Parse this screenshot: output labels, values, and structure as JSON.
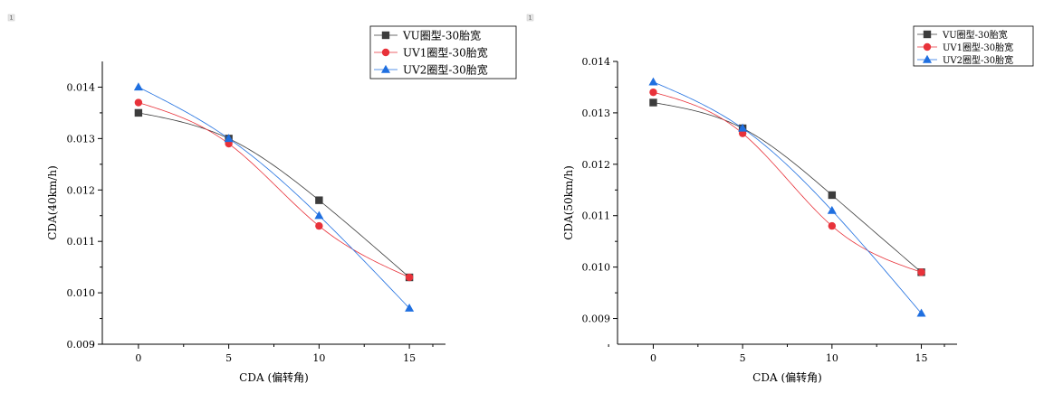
{
  "corner_marks": [
    "1",
    "1"
  ],
  "chart_data": [
    {
      "type": "line",
      "xlabel": "CDA (偏转角)",
      "ylabel": "CDA(40km/h)",
      "x": [
        0,
        5,
        10,
        15
      ],
      "xticks": [
        0,
        5,
        10,
        15
      ],
      "xlim": [
        -2,
        17
      ],
      "ylim": [
        0.009,
        0.0145
      ],
      "yticks": [
        0.009,
        0.01,
        0.011,
        0.012,
        0.013,
        0.014
      ],
      "ytick_labels": [
        "0.009",
        "0.010",
        "0.011",
        "0.012",
        "0.013",
        "0.014"
      ],
      "grid": false,
      "legend_position": "top-right",
      "series": [
        {
          "name": "VU圈型-30胎宽",
          "color": "#3c3c3c",
          "marker": "square",
          "values": [
            0.0135,
            0.013,
            0.0118,
            0.0103
          ]
        },
        {
          "name": "UV1圈型-30胎宽",
          "color": "#e8323a",
          "marker": "circle",
          "values": [
            0.0137,
            0.0129,
            0.0113,
            0.0103
          ]
        },
        {
          "name": "UV2圈型-30胎宽",
          "color": "#1f6fe0",
          "marker": "triangle",
          "values": [
            0.014,
            0.013,
            0.0115,
            0.0097
          ]
        }
      ]
    },
    {
      "type": "line",
      "xlabel": "CDA (偏转角)",
      "ylabel": "CDA(50km/h)",
      "x": [
        0,
        5,
        10,
        15
      ],
      "xticks": [
        0,
        5,
        10,
        15
      ],
      "xlim": [
        -2,
        17
      ],
      "ylim": [
        0.0085,
        0.014
      ],
      "yticks": [
        0.009,
        0.01,
        0.011,
        0.012,
        0.013,
        0.014
      ],
      "ytick_labels": [
        "0.009",
        "0.010",
        "0.011",
        "0.012",
        "0.013",
        "0.014"
      ],
      "grid": false,
      "legend_position": "top-right",
      "series": [
        {
          "name": "VU圈型-30胎宽",
          "color": "#3c3c3c",
          "marker": "square",
          "values": [
            0.0132,
            0.0127,
            0.0114,
            0.0099
          ]
        },
        {
          "name": "UV1圈型-30胎宽",
          "color": "#e8323a",
          "marker": "circle",
          "values": [
            0.0134,
            0.0126,
            0.0108,
            0.0099
          ]
        },
        {
          "name": "UV2圈型-30胎宽",
          "color": "#1f6fe0",
          "marker": "triangle",
          "values": [
            0.0136,
            0.0127,
            0.0111,
            0.0091
          ]
        }
      ]
    }
  ]
}
